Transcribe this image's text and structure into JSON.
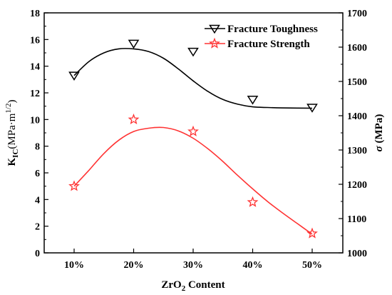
{
  "chart_data": {
    "type": "line",
    "categories": [
      "10%",
      "20%",
      "30%",
      "40%",
      "50%"
    ],
    "xlabel": {
      "main": "ZrO",
      "sub": "2",
      "rest": " Content"
    },
    "ylabel_left": {
      "main": "K",
      "sub": "IC",
      "rest": "(MPa·m",
      "sup": "1/2",
      "close": ")"
    },
    "ylabel_right": {
      "symbol": "σ",
      "rest": " (MPa)"
    },
    "ylim_left": [
      0,
      18
    ],
    "yticks_left": [
      "0",
      "2",
      "4",
      "6",
      "8",
      "10",
      "12",
      "14",
      "16",
      "18"
    ],
    "ylim_right": [
      1000,
      1700
    ],
    "yticks_right": [
      "1000",
      "1100",
      "1200",
      "1300",
      "1400",
      "1500",
      "1600",
      "1700"
    ],
    "grid": false,
    "legend_position": "top-right",
    "series": [
      {
        "name": "Fracture Toughness",
        "axis": "left",
        "marker": "triangle-down",
        "color": "#000000",
        "values": [
          13.3,
          15.7,
          15.1,
          11.5,
          10.9
        ],
        "fit_curve": [
          [
            0.0,
            13.3
          ],
          [
            0.25,
            14.35
          ],
          [
            0.5,
            15.0
          ],
          [
            0.75,
            15.3
          ],
          [
            1.0,
            15.3
          ],
          [
            1.25,
            15.1
          ],
          [
            1.5,
            14.6
          ],
          [
            1.75,
            13.8
          ],
          [
            2.0,
            12.9
          ],
          [
            2.25,
            12.1
          ],
          [
            2.5,
            11.5
          ],
          [
            2.75,
            11.15
          ],
          [
            3.0,
            10.95
          ],
          [
            3.25,
            10.9
          ],
          [
            3.5,
            10.87
          ],
          [
            3.75,
            10.86
          ],
          [
            4.0,
            10.85
          ]
        ]
      },
      {
        "name": "Fracture Strength",
        "axis": "left",
        "marker": "star",
        "color": "#ff3333",
        "values": [
          5.0,
          10.0,
          9.1,
          3.8,
          1.45
        ],
        "fit_curve": [
          [
            0.0,
            5.0
          ],
          [
            0.25,
            6.2
          ],
          [
            0.5,
            7.45
          ],
          [
            0.75,
            8.45
          ],
          [
            1.0,
            9.1
          ],
          [
            1.25,
            9.35
          ],
          [
            1.5,
            9.4
          ],
          [
            1.75,
            9.15
          ],
          [
            2.0,
            8.6
          ],
          [
            2.25,
            7.8
          ],
          [
            2.5,
            6.85
          ],
          [
            2.75,
            5.8
          ],
          [
            3.0,
            4.8
          ],
          [
            3.25,
            3.85
          ],
          [
            3.5,
            3.0
          ],
          [
            3.75,
            2.2
          ],
          [
            4.0,
            1.4
          ]
        ]
      }
    ]
  }
}
